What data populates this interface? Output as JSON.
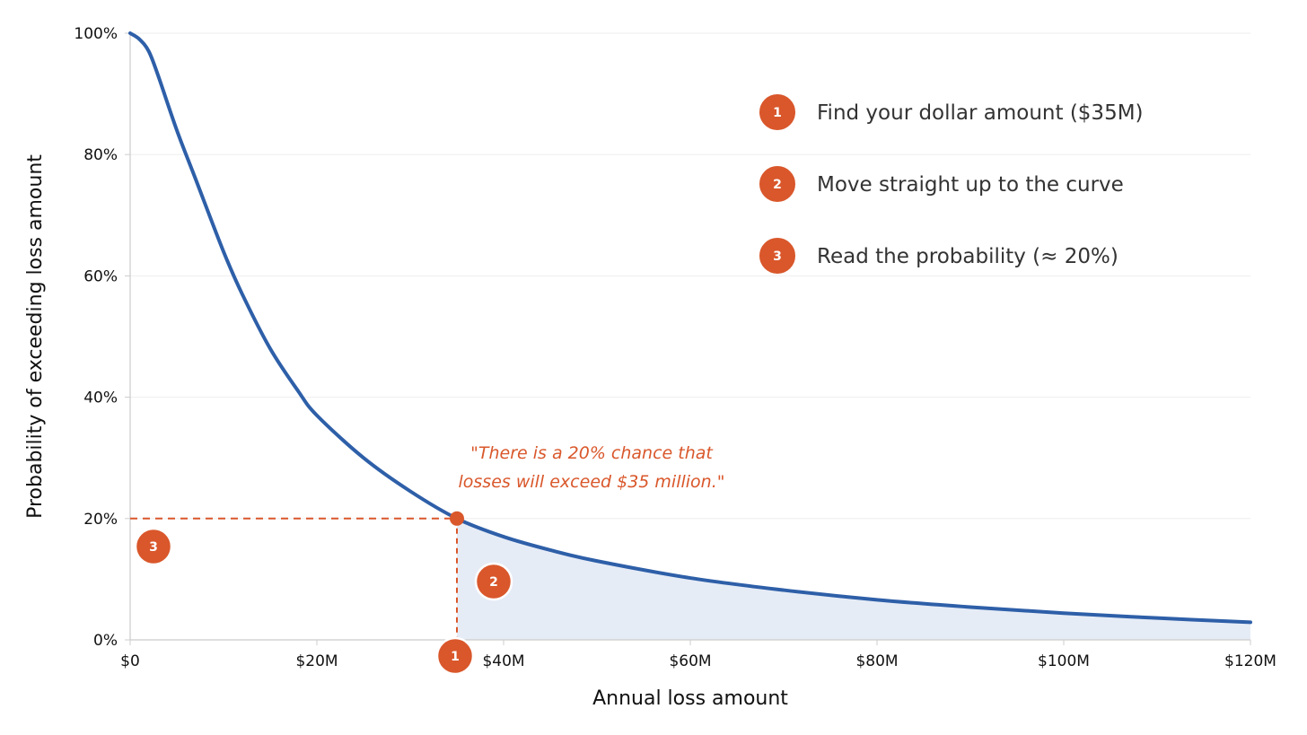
{
  "chart_data": {
    "type": "area",
    "xlabel": "Annual loss amount",
    "ylabel": "Probability of exceeding loss amount",
    "x_unit": "$M",
    "xlim": [
      0,
      120
    ],
    "ylim": [
      0,
      100
    ],
    "x_ticks": [
      0,
      20,
      40,
      60,
      80,
      100,
      120
    ],
    "x_tick_labels": [
      "$0",
      "$20M",
      "$40M",
      "$60M",
      "$80M",
      "$100M",
      "$120M"
    ],
    "y_ticks": [
      0,
      20,
      40,
      60,
      80,
      100
    ],
    "y_tick_labels": [
      "0%",
      "20%",
      "40%",
      "60%",
      "80%",
      "100%"
    ],
    "grid": "horizontal",
    "series": [
      {
        "x": [
          0,
          1,
          2,
          3,
          5,
          7,
          10,
          12,
          15,
          18,
          20,
          25,
          30,
          35,
          40,
          45,
          50,
          60,
          70,
          80,
          90,
          100,
          110,
          120
        ],
        "y": [
          100,
          99,
          97,
          93,
          84,
          76,
          64,
          57,
          48,
          41,
          37,
          30,
          24.5,
          20,
          17,
          14.8,
          13,
          10.2,
          8.2,
          6.6,
          5.4,
          4.4,
          3.6,
          2.9
        ]
      }
    ],
    "highlight": {
      "x": 35,
      "y": 20,
      "quote_lines": [
        "\"There is a 20% chance that",
        "losses will exceed $35 million.\""
      ]
    },
    "steps": [
      {
        "number": "1",
        "text": "Find your dollar amount ($35M)"
      },
      {
        "number": "2",
        "text": "Move straight up to the curve"
      },
      {
        "number": "3",
        "text": "Read the probability (≈ 20%)"
      }
    ],
    "colors": {
      "curve": "#2e5fa8",
      "area_fill": "#e6ecf6",
      "accent": "#d9572b",
      "grid": "#eeeeee",
      "axis": "#cccccc"
    }
  }
}
